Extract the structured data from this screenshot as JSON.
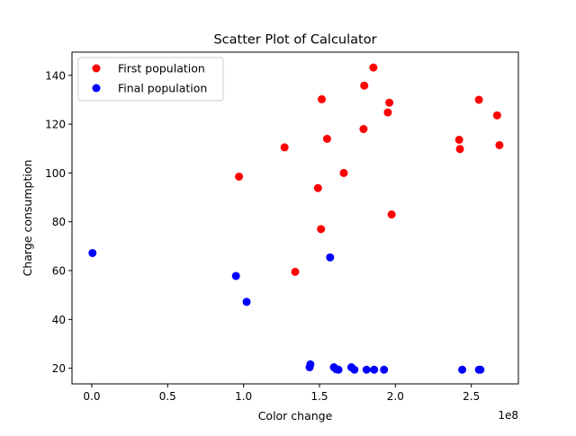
{
  "chart_data": {
    "type": "scatter",
    "title": "Scatter Plot of Calculator",
    "xlabel": "Color change",
    "ylabel": "Charge consumption",
    "x_offset_label": "1e8",
    "x_scale": 100000000,
    "xlim": [
      -13000000,
      281000000
    ],
    "ylim": [
      13.6,
      149.5
    ],
    "x_ticks": [
      0,
      50000000,
      100000000,
      150000000,
      200000000,
      250000000
    ],
    "x_tick_labels": [
      "0.0",
      "0.5",
      "1.0",
      "1.5",
      "2.0",
      "2.5"
    ],
    "y_ticks": [
      20,
      40,
      60,
      80,
      100,
      120,
      140
    ],
    "y_tick_labels": [
      "20",
      "40",
      "60",
      "80",
      "100",
      "120",
      "140"
    ],
    "grid": false,
    "legend_position": "upper-left",
    "series": [
      {
        "name": "First population",
        "color": "#ff0000",
        "points": [
          [
            97000000,
            98.5
          ],
          [
            127000000,
            110.5
          ],
          [
            134000000,
            59.5
          ],
          [
            149000000,
            93.8
          ],
          [
            151000000,
            77.0
          ],
          [
            151500000,
            130.2
          ],
          [
            155000000,
            114.0
          ],
          [
            166000000,
            100.0
          ],
          [
            179000000,
            118.0
          ],
          [
            179500000,
            135.8
          ],
          [
            185500000,
            143.2
          ],
          [
            195000000,
            124.8
          ],
          [
            196000000,
            128.8
          ],
          [
            197500000,
            83.0
          ],
          [
            242000000,
            113.6
          ],
          [
            242500000,
            109.8
          ],
          [
            255000000,
            130.0
          ],
          [
            267000000,
            123.6
          ],
          [
            268500000,
            111.4
          ]
        ]
      },
      {
        "name": "Final population",
        "color": "#0000ff",
        "points": [
          [
            500000,
            67.2
          ],
          [
            95000000,
            57.8
          ],
          [
            102000000,
            47.2
          ],
          [
            143500000,
            20.4
          ],
          [
            144000000,
            21.6
          ],
          [
            157000000,
            65.4
          ],
          [
            159500000,
            20.4
          ],
          [
            161000000,
            19.6
          ],
          [
            162500000,
            19.4
          ],
          [
            171000000,
            20.4
          ],
          [
            173000000,
            19.4
          ],
          [
            181000000,
            19.4
          ],
          [
            186000000,
            19.4
          ],
          [
            192500000,
            19.4
          ],
          [
            244000000,
            19.4
          ],
          [
            255000000,
            19.4
          ],
          [
            256000000,
            19.4
          ]
        ]
      }
    ]
  }
}
